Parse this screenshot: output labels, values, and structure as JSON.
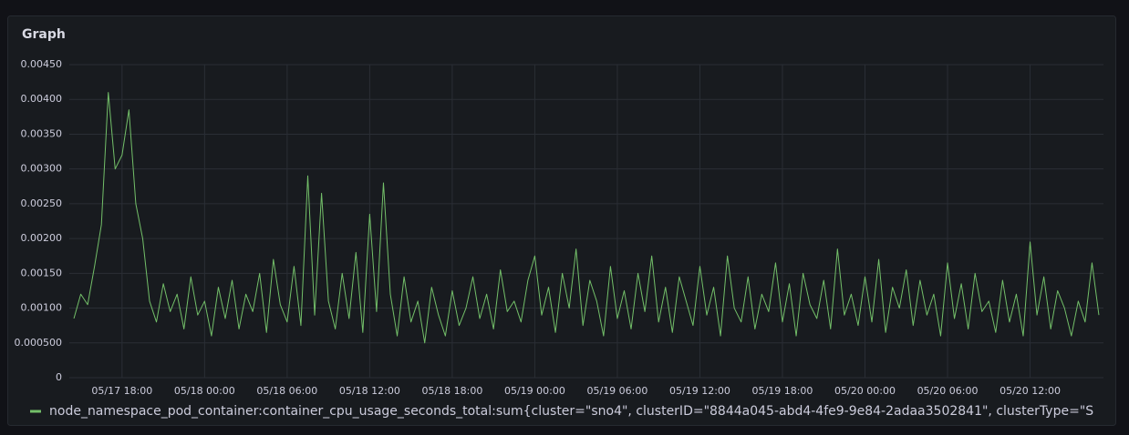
{
  "chart_data": {
    "type": "line",
    "title": "Graph",
    "x": [
      "05/17 14:30",
      "05/17 15:00",
      "05/17 15:30",
      "05/17 16:00",
      "05/17 16:30",
      "05/17 17:00",
      "05/17 17:30",
      "05/17 18:00",
      "05/17 18:30",
      "05/17 19:00",
      "05/17 19:30",
      "05/17 20:00",
      "05/17 20:30",
      "05/17 21:00",
      "05/17 21:30",
      "05/17 22:00",
      "05/17 22:30",
      "05/17 23:00",
      "05/17 23:30",
      "05/18 00:00",
      "05/18 00:30",
      "05/18 01:00",
      "05/18 01:30",
      "05/18 02:00",
      "05/18 02:30",
      "05/18 03:00",
      "05/18 03:30",
      "05/18 04:00",
      "05/18 04:30",
      "05/18 05:00",
      "05/18 05:30",
      "05/18 06:00",
      "05/18 06:30",
      "05/18 07:00",
      "05/18 07:30",
      "05/18 08:00",
      "05/18 08:30",
      "05/18 09:00",
      "05/18 09:30",
      "05/18 10:00",
      "05/18 10:30",
      "05/18 11:00",
      "05/18 11:30",
      "05/18 12:00",
      "05/18 12:30",
      "05/18 13:00",
      "05/18 13:30",
      "05/18 14:00",
      "05/18 14:30",
      "05/18 15:00",
      "05/18 15:30",
      "05/18 16:00",
      "05/18 16:30",
      "05/18 17:00",
      "05/18 17:30",
      "05/18 18:00",
      "05/18 18:30",
      "05/18 19:00",
      "05/18 19:30",
      "05/18 20:00",
      "05/18 20:30",
      "05/18 21:00",
      "05/18 21:30",
      "05/18 22:00",
      "05/18 22:30",
      "05/18 23:00",
      "05/18 23:30",
      "05/19 00:00",
      "05/19 00:30",
      "05/19 01:00",
      "05/19 01:30",
      "05/19 02:00",
      "05/19 02:30",
      "05/19 03:00",
      "05/19 03:30",
      "05/19 04:00",
      "05/19 04:30",
      "05/19 05:00",
      "05/19 05:30",
      "05/19 06:00",
      "05/19 06:30",
      "05/19 07:00",
      "05/19 07:30",
      "05/19 08:00",
      "05/19 08:30",
      "05/19 09:00",
      "05/19 09:30",
      "05/19 10:00",
      "05/19 10:30",
      "05/19 11:00",
      "05/19 11:30",
      "05/19 12:00",
      "05/19 12:30",
      "05/19 13:00",
      "05/19 13:30",
      "05/19 14:00",
      "05/19 14:30",
      "05/19 15:00",
      "05/19 15:30",
      "05/19 16:00",
      "05/19 16:30",
      "05/19 17:00",
      "05/19 17:30",
      "05/19 18:00",
      "05/19 18:30",
      "05/19 19:00",
      "05/19 19:30",
      "05/19 20:00",
      "05/19 20:30",
      "05/19 21:00",
      "05/19 21:30",
      "05/19 22:00",
      "05/19 22:30",
      "05/19 23:00",
      "05/19 23:30",
      "05/20 00:00",
      "05/20 00:30",
      "05/20 01:00",
      "05/20 01:30",
      "05/20 02:00",
      "05/20 02:30",
      "05/20 03:00",
      "05/20 03:30",
      "05/20 04:00",
      "05/20 04:30",
      "05/20 05:00",
      "05/20 05:30",
      "05/20 06:00",
      "05/20 06:30",
      "05/20 07:00",
      "05/20 07:30",
      "05/20 08:00",
      "05/20 08:30",
      "05/20 09:00",
      "05/20 09:30",
      "05/20 10:00",
      "05/20 10:30",
      "05/20 11:00",
      "05/20 11:30",
      "05/20 12:00",
      "05/20 12:30",
      "05/20 13:00",
      "05/20 13:30",
      "05/20 14:00",
      "05/20 14:30",
      "05/20 15:00",
      "05/20 15:30",
      "05/20 16:00",
      "05/20 16:30",
      "05/20 17:00"
    ],
    "series": [
      {
        "name": "node_namespace_pod_container:container_cpu_usage_seconds_total:sum{cluster=\"sno4\", clusterID=\"8844a045-abd4-4fe9-9e84-2adaa3502841\", clusterType=\"S",
        "color": "#73bf69",
        "values": [
          0.00085,
          0.0012,
          0.00105,
          0.0016,
          0.0022,
          0.0041,
          0.003,
          0.0032,
          0.00385,
          0.0025,
          0.002,
          0.0011,
          0.0008,
          0.00135,
          0.00095,
          0.0012,
          0.0007,
          0.00145,
          0.0009,
          0.0011,
          0.0006,
          0.0013,
          0.00085,
          0.0014,
          0.0007,
          0.0012,
          0.00095,
          0.0015,
          0.00065,
          0.0017,
          0.00105,
          0.0008,
          0.0016,
          0.00075,
          0.0029,
          0.0009,
          0.00265,
          0.0011,
          0.0007,
          0.0015,
          0.00085,
          0.0018,
          0.00065,
          0.00235,
          0.00095,
          0.0028,
          0.0012,
          0.0006,
          0.00145,
          0.0008,
          0.0011,
          0.0005,
          0.0013,
          0.0009,
          0.0006,
          0.00125,
          0.00075,
          0.001,
          0.00145,
          0.00085,
          0.0012,
          0.0007,
          0.00155,
          0.00095,
          0.0011,
          0.0008,
          0.0014,
          0.00175,
          0.0009,
          0.0013,
          0.00065,
          0.0015,
          0.001,
          0.00185,
          0.00075,
          0.0014,
          0.0011,
          0.0006,
          0.0016,
          0.00085,
          0.00125,
          0.0007,
          0.0015,
          0.00095,
          0.00175,
          0.0008,
          0.0013,
          0.00065,
          0.00145,
          0.0011,
          0.00075,
          0.0016,
          0.0009,
          0.0013,
          0.0006,
          0.00175,
          0.001,
          0.0008,
          0.00145,
          0.0007,
          0.0012,
          0.00095,
          0.00165,
          0.0008,
          0.00135,
          0.0006,
          0.0015,
          0.00105,
          0.00085,
          0.0014,
          0.0007,
          0.00185,
          0.0009,
          0.0012,
          0.00075,
          0.00145,
          0.0008,
          0.0017,
          0.00065,
          0.0013,
          0.001,
          0.00155,
          0.00075,
          0.0014,
          0.0009,
          0.0012,
          0.0006,
          0.00165,
          0.00085,
          0.00135,
          0.0007,
          0.0015,
          0.00095,
          0.0011,
          0.00065,
          0.0014,
          0.0008,
          0.0012,
          0.0006,
          0.00195,
          0.0009,
          0.00145,
          0.0007,
          0.00125,
          0.001,
          0.0006,
          0.0011,
          0.0008,
          0.00165,
          0.0009
        ]
      }
    ],
    "xlim": [
      "05/17 14:10",
      "05/20 17:20"
    ],
    "xticks": [
      "05/17 18:00",
      "05/18 00:00",
      "05/18 06:00",
      "05/18 12:00",
      "05/18 18:00",
      "05/19 00:00",
      "05/19 06:00",
      "05/19 12:00",
      "05/19 18:00",
      "05/20 00:00",
      "05/20 06:00",
      "05/20 12:00"
    ],
    "ylim": [
      0,
      0.0045
    ],
    "yticks": [
      0,
      {
        "value": 0.0005,
        "label": "0.000500"
      },
      {
        "value": 0.001,
        "label": "0.00100"
      },
      {
        "value": 0.0015,
        "label": "0.00150"
      },
      {
        "value": 0.002,
        "label": "0.00200"
      },
      {
        "value": 0.0025,
        "label": "0.00250"
      },
      {
        "value": 0.003,
        "label": "0.00300"
      },
      {
        "value": 0.0035,
        "label": "0.00350"
      },
      {
        "value": 0.004,
        "label": "0.00400"
      },
      {
        "value": 0.0045,
        "label": "0.00450"
      }
    ],
    "grid": true
  }
}
